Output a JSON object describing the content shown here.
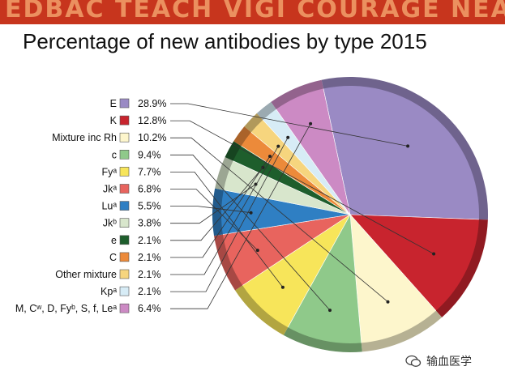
{
  "title": "Percentage of new  antibodies by type 2015",
  "banner_text": "EDBAC  TEACH  VIGI  COURAGE  NEA",
  "watermark": "输血医学",
  "chart_data": {
    "type": "pie",
    "title": "Percentage of new  antibodies by type 2015",
    "legend_position": "left",
    "slices": [
      {
        "label": "E",
        "value": 28.9,
        "value_label": "28.9%",
        "color": "#9a8ac4"
      },
      {
        "label": "K",
        "value": 12.8,
        "value_label": "12.8%",
        "color": "#c8242e"
      },
      {
        "label": "Mixture inc Rh",
        "value": 10.2,
        "value_label": "10.2%",
        "color": "#fdf6cc"
      },
      {
        "label": "c",
        "value": 9.4,
        "value_label": "9.4%",
        "color": "#8fc98a"
      },
      {
        "label": "Fyᵃ",
        "value": 7.7,
        "value_label": "7.7%",
        "color": "#f7e55a"
      },
      {
        "label": "Jkᵃ",
        "value": 6.8,
        "value_label": "6.8%",
        "color": "#e8645e"
      },
      {
        "label": "Luᵃ",
        "value": 5.5,
        "value_label": "5.5%",
        "color": "#2f7fc3"
      },
      {
        "label": "Jkᵇ",
        "value": 3.8,
        "value_label": "3.8%",
        "color": "#d8e6cc"
      },
      {
        "label": "e",
        "value": 2.1,
        "value_label": "2.1%",
        "color": "#1e5e2c"
      },
      {
        "label": "C",
        "value": 2.1,
        "value_label": "2.1%",
        "color": "#ec8a3a"
      },
      {
        "label": "Other mixture",
        "value": 2.1,
        "value_label": "2.1%",
        "color": "#f6d57e"
      },
      {
        "label": "Kpᵃ",
        "value": 2.1,
        "value_label": "2.1%",
        "color": "#d7ecf6"
      },
      {
        "label": "M, Cʷ, D, Fyᵇ, S, f, Leᵃ",
        "value": 6.4,
        "value_label": "6.4%",
        "color": "#cc8ac4"
      }
    ]
  }
}
